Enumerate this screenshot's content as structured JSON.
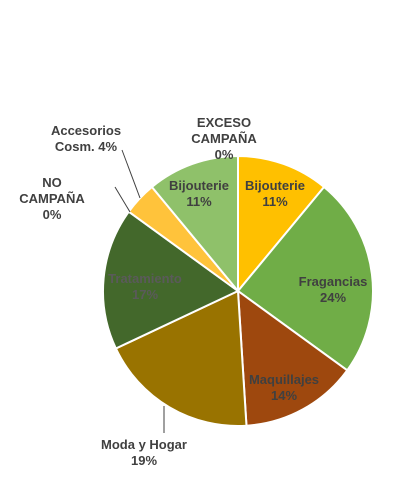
{
  "chart_data": {
    "type": "pie",
    "title": "",
    "slices": [
      {
        "label": "Bijouterie",
        "value": 11,
        "pct_label": "11%",
        "color": "#ffc000",
        "label_color": "#404040",
        "label_pos": "inside"
      },
      {
        "label": "Fragancias",
        "value": 24,
        "pct_label": "24%",
        "color": "#70ad47",
        "label_color": "#404040",
        "label_pos": "inside"
      },
      {
        "label": "Maquillajes",
        "value": 14,
        "pct_label": "14%",
        "color": "#9e480e",
        "label_color": "#404040",
        "label_pos": "inside"
      },
      {
        "label": "Moda y Hogar",
        "value": 19,
        "pct_label": "19%",
        "color": "#997300",
        "label_color": "#404040",
        "label_pos": "outside"
      },
      {
        "label": "Tratamiento",
        "value": 17,
        "pct_label": "17%",
        "color": "#43682b",
        "label_color": "#5a5a5a",
        "label_pos": "inside"
      },
      {
        "label": "NO CAMPAÑA",
        "value": 0,
        "pct_label": "0%",
        "color": "#264478",
        "label_color": "#404040",
        "label_pos": "outside"
      },
      {
        "label": "Accesorios Cosm.",
        "value": 4,
        "pct_label": "4%",
        "color": "#ffc33b",
        "label_color": "#404040",
        "label_pos": "outside"
      },
      {
        "label": "Bijouterie",
        "value": 11,
        "pct_label": "11%",
        "color": "#8fc16a",
        "label_color": "#404040",
        "label_pos": "inside"
      },
      {
        "label": "EXCESO CAMPAÑA",
        "value": 0,
        "pct_label": "0%",
        "color": "#a5a5a5",
        "label_color": "#404040",
        "label_pos": "outside"
      }
    ],
    "legend": "none"
  }
}
